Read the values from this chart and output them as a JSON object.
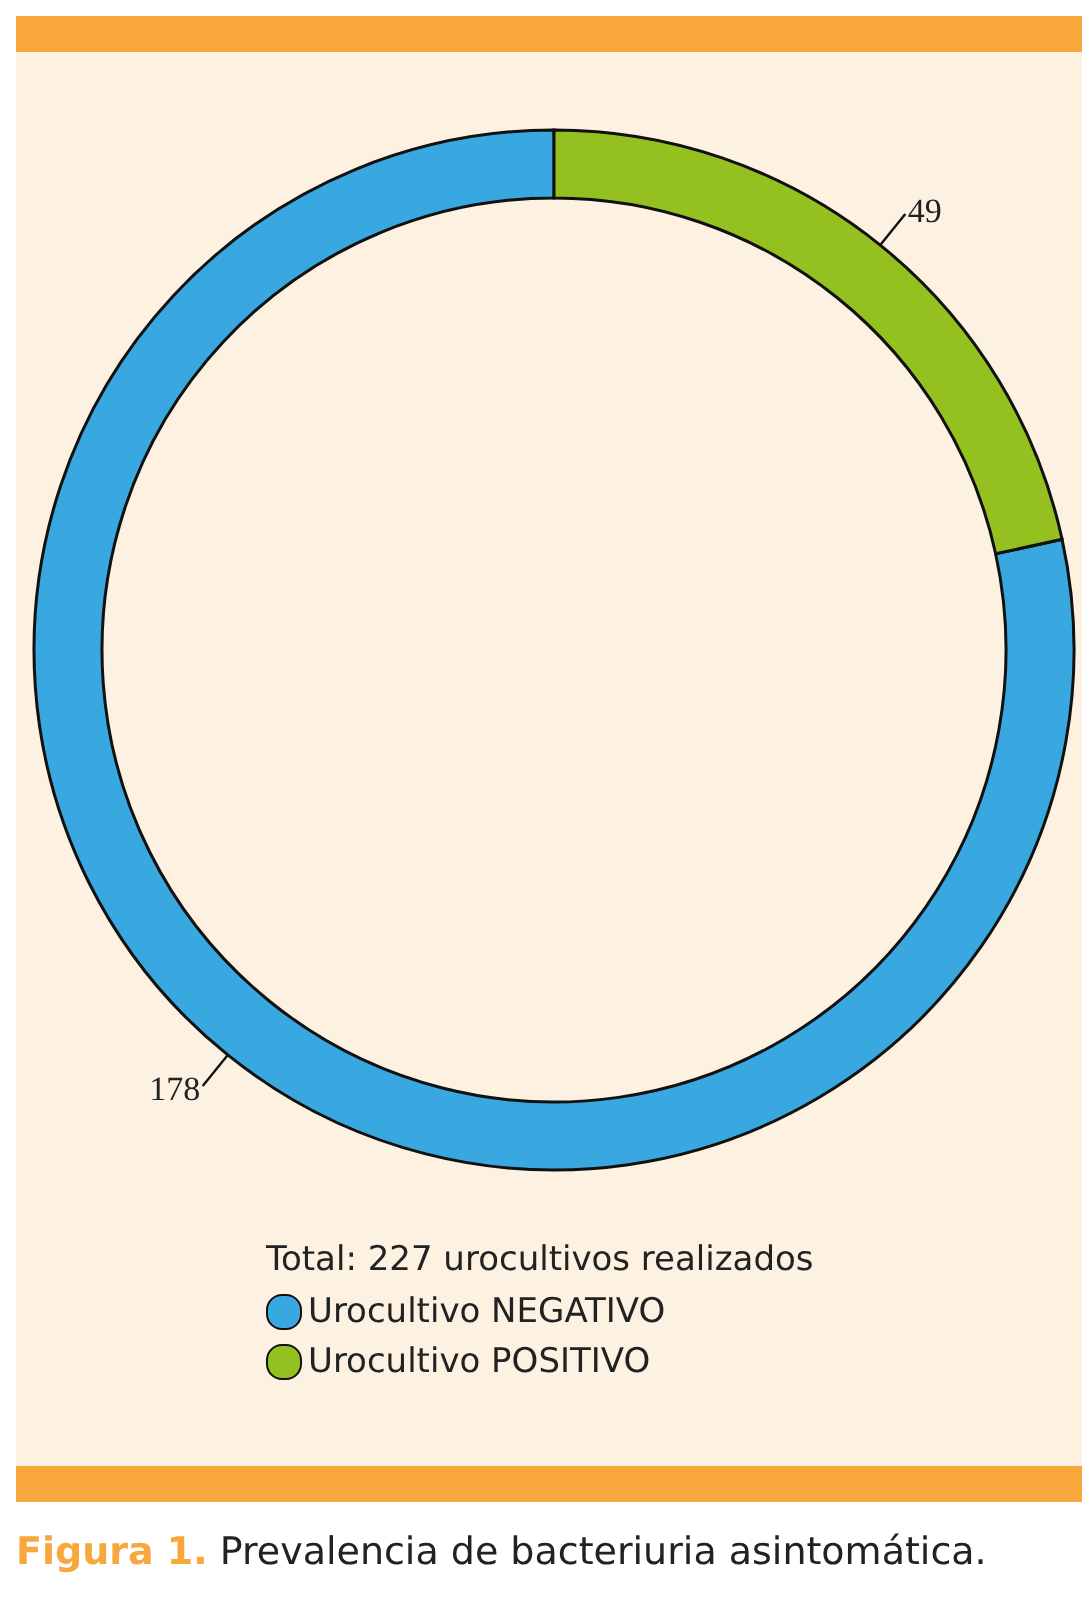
{
  "chart_data": {
    "type": "donut",
    "title": "Prevalencia de bacteriuria asintomática.",
    "annotations": [
      "Figura 1."
    ],
    "legend_title": "Total: 227 urocultivos realizados",
    "categories": [
      "Urocultivo NEGATIVO",
      "Urocultivo POSITIVO"
    ],
    "values": [
      178,
      49
    ],
    "colors": [
      "#3aa8e0",
      "#94c120"
    ],
    "data_labels": true,
    "legend": "bottom"
  }
}
